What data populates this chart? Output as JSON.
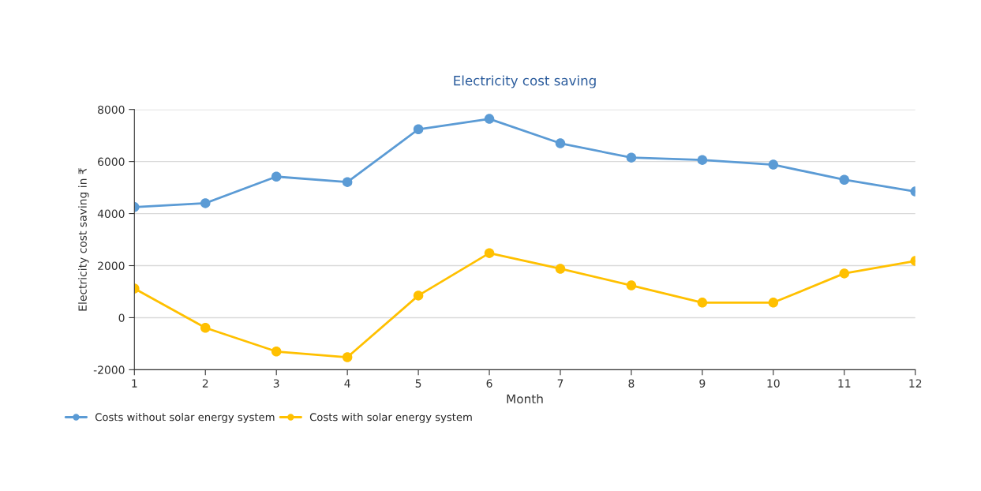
{
  "chart_data": {
    "type": "line",
    "title": "Electricity cost saving",
    "xlabel": "Month",
    "ylabel": "Electricity cost saving in ₹",
    "x": [
      1,
      2,
      3,
      4,
      5,
      6,
      7,
      8,
      9,
      10,
      11,
      12
    ],
    "series": [
      {
        "name": "Costs without solar energy system",
        "color": "#5b9bd5",
        "values": [
          4250,
          4400,
          5420,
          5210,
          7240,
          7640,
          6700,
          6150,
          6060,
          5880,
          5300,
          4850
        ]
      },
      {
        "name": "Costs with solar energy system",
        "color": "#ffc000",
        "values": [
          1120,
          -390,
          -1300,
          -1520,
          850,
          2480,
          1880,
          1240,
          580,
          580,
          1700,
          2180
        ]
      }
    ],
    "xlim": [
      1,
      12
    ],
    "xticks": [
      1,
      2,
      3,
      4,
      5,
      6,
      7,
      8,
      9,
      10,
      11,
      12
    ],
    "ylim": [
      -2000,
      8000
    ],
    "yticks": [
      -2000,
      0,
      2000,
      4000,
      6000,
      8000
    ],
    "grid": "y",
    "legend": "bottom left",
    "marker": "circle",
    "line_style": "solid"
  }
}
